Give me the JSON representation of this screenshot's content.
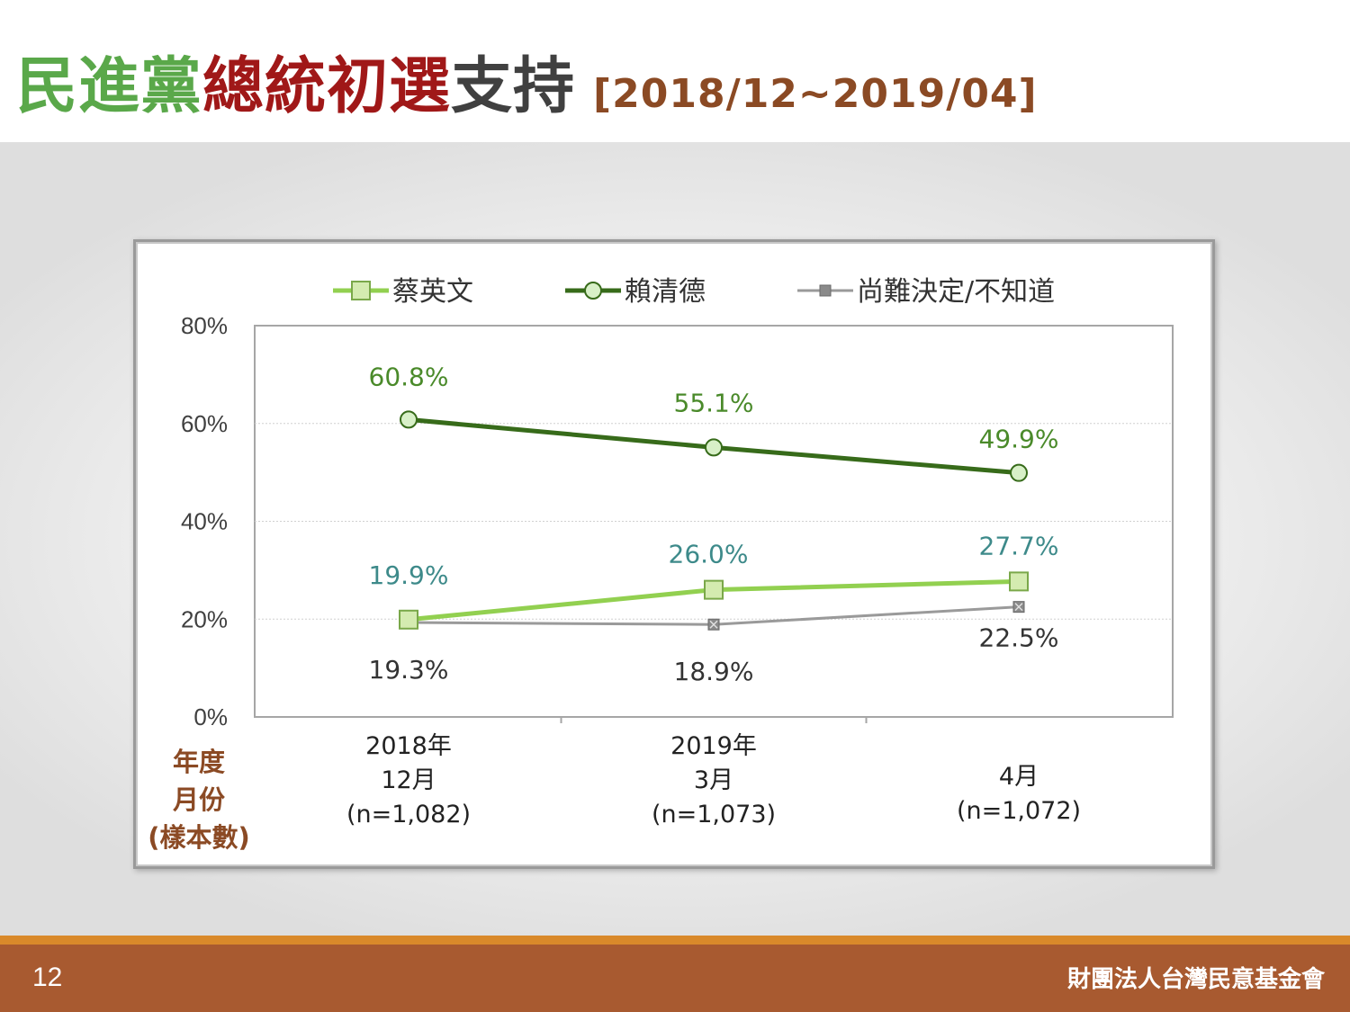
{
  "slide": {
    "title_parts": [
      {
        "text": "民進黨",
        "color": "#5aa84a"
      },
      {
        "text": "總統初選",
        "color": "#a01818"
      },
      {
        "text": "支持",
        "color": "#404040"
      }
    ],
    "title_range": "[2018/12~2019/04]",
    "title_range_color": "#8b4a24",
    "page_number": "12",
    "org_name": "財團法人台灣民意基金會"
  },
  "chart_data": {
    "type": "line",
    "x_label_lines": [
      "年度",
      "月份",
      "(樣本數)"
    ],
    "categories": [
      {
        "lines": [
          "2018年",
          "12月",
          "(n=1,082)"
        ]
      },
      {
        "lines": [
          "2019年",
          "3月",
          "(n=1,073)"
        ]
      },
      {
        "lines": [
          "",
          "4月",
          "(n=1,072)"
        ]
      }
    ],
    "y_ticks": [
      "0%",
      "20%",
      "40%",
      "60%",
      "80%"
    ],
    "ylim": [
      0,
      80
    ],
    "grid": true,
    "legend_position": "top",
    "series": [
      {
        "name": "蔡英文",
        "values": [
          19.9,
          26.0,
          27.7
        ],
        "labels": [
          "19.9%",
          "26.0%",
          "27.7%"
        ],
        "color": "#92d050",
        "label_color": "#3d8a8a",
        "marker": "square",
        "label_position": "above"
      },
      {
        "name": "賴清德",
        "values": [
          60.8,
          55.1,
          49.9
        ],
        "labels": [
          "60.8%",
          "55.1%",
          "49.9%"
        ],
        "color": "#376b1a",
        "label_color": "#4a8a2a",
        "marker": "circle",
        "label_position": "above"
      },
      {
        "name": "尚難決定/不知道",
        "values": [
          19.3,
          18.9,
          22.5
        ],
        "labels": [
          "19.3%",
          "18.9%",
          "22.5%"
        ],
        "color": "#9a9a9a",
        "label_color": "#333333",
        "marker": "x-square",
        "label_position": "below"
      }
    ]
  }
}
